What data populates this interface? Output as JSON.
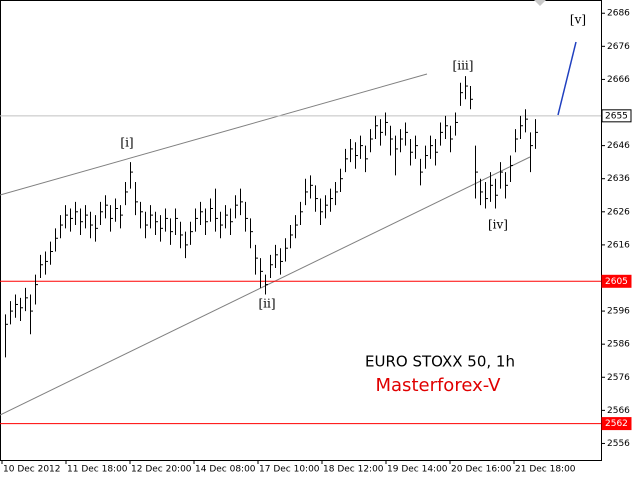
{
  "chart_data": {
    "type": "ohlc",
    "title": "EURO STOXX 50, 1h",
    "subtitle": "Masterforex-V",
    "color": "#000000",
    "xtick_labels": [
      "10 Dec 2012",
      "11 Dec 18:00",
      "12 Dec 20:00",
      "14 Dec 08:00",
      "17 Dec 10:00",
      "18 Dec 12:00",
      "19 Dec 14:00",
      "20 Dec 16:00",
      "21 Dec 18:00"
    ],
    "high": [
      2595,
      2599,
      2601,
      2600,
      2603,
      2601,
      2607,
      2613,
      2614,
      2617,
      2621,
      2625,
      2628,
      2627,
      2629,
      2627,
      2628,
      2626,
      2625,
      2629,
      2631,
      2628,
      2630,
      2628,
      2635,
      2641,
      2635,
      2629,
      2626,
      2628,
      2626,
      2625,
      2627,
      2624,
      2627,
      2623,
      2620,
      2623,
      2627,
      2629,
      2627,
      2630,
      2633,
      2626,
      2628,
      2627,
      2631,
      2633,
      2629,
      2624,
      2616,
      2612,
      2607,
      2613,
      2616,
      2615,
      2618,
      2622,
      2625,
      2629,
      2636,
      2637,
      2634,
      2630,
      2631,
      2633,
      2635,
      2639,
      2645,
      2648,
      2647,
      2649,
      2646,
      2651,
      2655,
      2654,
      2656,
      2652,
      2649,
      2651,
      2653,
      2648,
      2649,
      2642,
      2646,
      2649,
      2648,
      2653,
      2655,
      2652,
      2656,
      2665,
      2667,
      2664,
      2646,
      2636,
      2635,
      2638,
      2636,
      2641,
      2638,
      2643,
      2651,
      2655,
      2657,
      2650,
      2654
    ],
    "low": [
      2582,
      2592,
      2594,
      2593,
      2596,
      2589,
      2598,
      2606,
      2607,
      2610,
      2614,
      2618,
      2621,
      2620,
      2622,
      2619,
      2621,
      2618,
      2617,
      2622,
      2624,
      2620,
      2623,
      2621,
      2628,
      2633,
      2625,
      2621,
      2618,
      2621,
      2619,
      2617,
      2620,
      2616,
      2619,
      2615,
      2612,
      2616,
      2620,
      2622,
      2619,
      2623,
      2620,
      2618,
      2621,
      2619,
      2624,
      2625,
      2620,
      2615,
      2607,
      2603,
      2601,
      2606,
      2609,
      2607,
      2611,
      2615,
      2618,
      2622,
      2628,
      2630,
      2626,
      2622,
      2624,
      2626,
      2628,
      2632,
      2638,
      2641,
      2639,
      2642,
      2638,
      2644,
      2648,
      2646,
      2649,
      2643,
      2637,
      2644,
      2646,
      2640,
      2642,
      2634,
      2639,
      2642,
      2640,
      2646,
      2648,
      2644,
      2649,
      2658,
      2660,
      2657,
      2630,
      2628,
      2627,
      2629,
      2627,
      2633,
      2630,
      2635,
      2644,
      2648,
      2650,
      2638,
      2645
    ],
    "close": [
      2592,
      2596,
      2598,
      2597,
      2600,
      2596,
      2604,
      2610,
      2611,
      2614,
      2618,
      2622,
      2625,
      2624,
      2626,
      2623,
      2625,
      2622,
      2621,
      2626,
      2628,
      2624,
      2627,
      2625,
      2632,
      2638,
      2629,
      2626,
      2622,
      2625,
      2623,
      2621,
      2624,
      2620,
      2624,
      2619,
      2616,
      2620,
      2624,
      2626,
      2623,
      2627,
      2624,
      2622,
      2625,
      2623,
      2628,
      2629,
      2624,
      2620,
      2612,
      2608,
      2604,
      2610,
      2613,
      2611,
      2615,
      2619,
      2622,
      2626,
      2632,
      2634,
      2630,
      2626,
      2628,
      2630,
      2632,
      2636,
      2642,
      2645,
      2643,
      2646,
      2642,
      2648,
      2652,
      2650,
      2653,
      2648,
      2645,
      2648,
      2650,
      2644,
      2646,
      2638,
      2643,
      2646,
      2644,
      2650,
      2652,
      2648,
      2653,
      2662,
      2664,
      2660,
      2638,
      2632,
      2630,
      2634,
      2631,
      2638,
      2634,
      2640,
      2648,
      2652,
      2654,
      2646,
      2650
    ],
    "ylim": [
      2551,
      2690
    ],
    "yticks": [
      2686,
      2676,
      2666,
      2646,
      2636,
      2626,
      2616,
      2596,
      2586,
      2576,
      2566,
      2556
    ],
    "levels": [
      {
        "value": 2655,
        "color": "#c0c0c0"
      },
      {
        "value": 2605,
        "color": "#ff0000"
      },
      {
        "value": 2562,
        "color": "#ff0000"
      }
    ],
    "annotations": [
      "[i]",
      "[ii]",
      "[iii]",
      "[iv]",
      "[v]"
    ]
  }
}
